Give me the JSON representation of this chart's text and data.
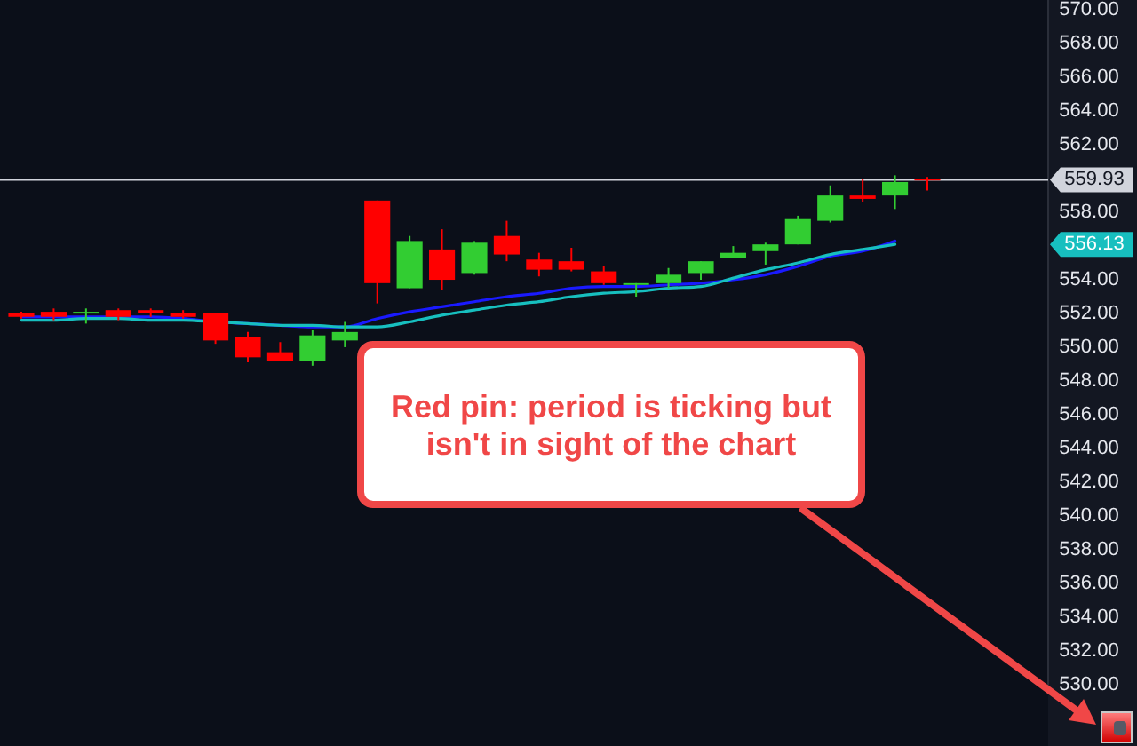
{
  "chart_data": {
    "type": "candlestick",
    "categories": [
      null,
      null,
      null,
      null,
      null,
      null,
      null,
      null,
      null,
      null,
      null,
      null,
      null,
      null,
      null,
      null,
      null,
      null,
      null,
      null,
      null,
      null,
      null,
      null,
      null,
      null,
      null,
      null,
      null
    ],
    "ohlc": [
      [
        552.0,
        552.1,
        551.7,
        551.8
      ],
      [
        552.1,
        552.3,
        551.6,
        551.8
      ],
      [
        552.0,
        552.3,
        551.4,
        552.1
      ],
      [
        552.2,
        552.3,
        551.6,
        551.8
      ],
      [
        552.2,
        552.3,
        551.8,
        552.0
      ],
      [
        552.0,
        552.2,
        551.7,
        551.8
      ],
      [
        552.0,
        552.0,
        550.2,
        550.4
      ],
      [
        550.6,
        550.9,
        549.1,
        549.4
      ],
      [
        549.7,
        550.3,
        549.2,
        549.2
      ],
      [
        549.2,
        551.0,
        548.9,
        550.7
      ],
      [
        550.4,
        551.5,
        550.0,
        550.9
      ],
      [
        558.7,
        558.7,
        552.6,
        553.8
      ],
      [
        553.5,
        556.6,
        553.5,
        556.3
      ],
      [
        555.8,
        557.0,
        553.4,
        554.0
      ],
      [
        554.4,
        556.3,
        554.3,
        556.2
      ],
      [
        556.6,
        557.5,
        555.1,
        555.5
      ],
      [
        555.2,
        555.6,
        554.2,
        554.6
      ],
      [
        555.1,
        555.9,
        554.5,
        554.6
      ],
      [
        554.5,
        554.8,
        553.7,
        553.8
      ],
      [
        553.7,
        553.8,
        553.0,
        553.8
      ],
      [
        553.8,
        554.7,
        553.5,
        554.3
      ],
      [
        554.4,
        555.1,
        554.0,
        555.1
      ],
      [
        555.3,
        556.0,
        555.3,
        555.6
      ],
      [
        555.7,
        556.2,
        554.9,
        556.1
      ],
      [
        556.1,
        557.8,
        556.1,
        557.6
      ],
      [
        557.5,
        559.6,
        557.4,
        559.0
      ],
      [
        559.0,
        560.0,
        558.6,
        558.8
      ],
      [
        559.0,
        560.2,
        558.2,
        559.8
      ],
      [
        560.0,
        560.1,
        559.3,
        559.93
      ]
    ],
    "colors": [
      "#ff0000",
      "#ff0000",
      "#32cd32",
      "#ff0000",
      "#ff0000",
      "#ff0000",
      "#ff0000",
      "#ff0000",
      "#ff0000",
      "#32cd32",
      "#32cd32",
      "#ff0000",
      "#32cd32",
      "#ff0000",
      "#32cd32",
      "#ff0000",
      "#ff0000",
      "#ff0000",
      "#ff0000",
      "#32cd32",
      "#32cd32",
      "#32cd32",
      "#32cd32",
      "#32cd32",
      "#32cd32",
      "#32cd32",
      "#ff0000",
      "#32cd32",
      "#ff0000"
    ],
    "series": [
      {
        "type": "line",
        "color": "#1a1aff",
        "values": [
          551.8,
          551.8,
          551.8,
          551.8,
          551.8,
          551.7,
          551.5,
          551.4,
          551.3,
          551.2,
          551.2,
          551.7,
          552.1,
          552.4,
          552.7,
          553.0,
          553.2,
          553.5,
          553.6,
          553.6,
          553.7,
          553.8,
          554.0,
          554.3,
          554.8,
          555.4,
          555.7,
          556.3,
          null
        ]
      },
      {
        "type": "line",
        "color": "#17bfbf",
        "values": [
          551.6,
          551.6,
          551.7,
          551.7,
          551.6,
          551.6,
          551.5,
          551.4,
          551.3,
          551.3,
          551.2,
          551.2,
          551.5,
          551.9,
          552.2,
          552.5,
          552.7,
          553.0,
          553.2,
          553.3,
          553.5,
          553.6,
          554.1,
          554.6,
          555.0,
          555.5,
          555.8,
          556.1,
          null
        ]
      }
    ],
    "ylim": [
      529.5,
      570.6
    ],
    "yticks": [
      {
        "value": 530,
        "label": "530.00"
      },
      {
        "value": 532,
        "label": "532.00"
      },
      {
        "value": 534,
        "label": "534.00"
      },
      {
        "value": 536,
        "label": "536.00"
      },
      {
        "value": 538,
        "label": "538.00"
      },
      {
        "value": 540,
        "label": "540.00"
      },
      {
        "value": 542,
        "label": "542.00"
      },
      {
        "value": 544,
        "label": "544.00"
      },
      {
        "value": 546,
        "label": "546.00"
      },
      {
        "value": 548,
        "label": "548.00"
      },
      {
        "value": 550,
        "label": "550.00"
      },
      {
        "value": 552,
        "label": "552.00"
      },
      {
        "value": 554,
        "label": "554.00"
      },
      {
        "value": 558,
        "label": "558.00"
      },
      {
        "value": 562,
        "label": "562.00"
      },
      {
        "value": 564,
        "label": "564.00"
      },
      {
        "value": 566,
        "label": "566.00"
      },
      {
        "value": 568,
        "label": "568.00"
      },
      {
        "value": 570,
        "label": "570.00"
      }
    ],
    "tick_labels": "y",
    "ref_lines": [
      {
        "axis": "y",
        "value": 559.93,
        "label": "559.93",
        "color": "#d1d4dc"
      }
    ],
    "annotations": [
      "Red pin: period is ticking but isn't in sight of the chart",
      "556.13"
    ]
  }
}
